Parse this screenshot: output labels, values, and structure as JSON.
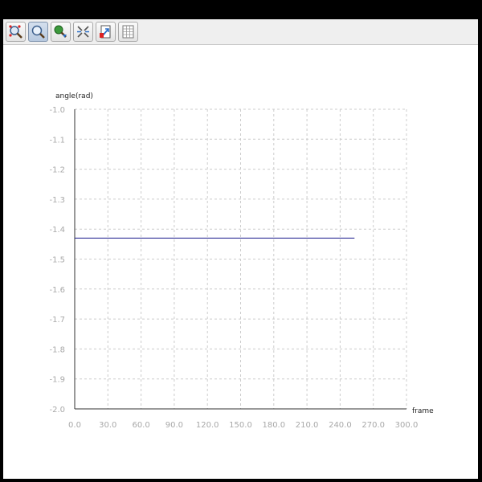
{
  "toolbar": {
    "buttons": [
      {
        "icon": "zoom-extent-icon"
      },
      {
        "icon": "zoom-icon",
        "active": true
      },
      {
        "icon": "pan-icon"
      },
      {
        "icon": "zoom-out-axes-icon"
      },
      {
        "icon": "export-icon"
      },
      {
        "icon": "table-icon"
      }
    ]
  },
  "chart_data": {
    "type": "line",
    "title": "",
    "xlabel": "frame",
    "ylabel": "angle(rad)",
    "xlim": [
      0,
      300
    ],
    "ylim": [
      -2.0,
      -1.0
    ],
    "x_ticks": [
      "0.0",
      "30.0",
      "60.0",
      "90.0",
      "120.0",
      "150.0",
      "180.0",
      "210.0",
      "240.0",
      "270.0",
      "300.0"
    ],
    "y_ticks": [
      "-1.0",
      "-1.1",
      "-1.2",
      "-1.3",
      "-1.4",
      "-1.5",
      "-1.6",
      "-1.7",
      "-1.8",
      "-1.9",
      "-2.0"
    ],
    "grid": true,
    "series": [
      {
        "color": "#1a1a8c",
        "x": [
          0,
          253
        ],
        "y": [
          -1.43,
          -1.43
        ]
      }
    ]
  },
  "colors": {
    "grid": "#cccccc",
    "axis": "#333333",
    "tick_label": "#a8a8a8",
    "axis_label": "#222222"
  }
}
